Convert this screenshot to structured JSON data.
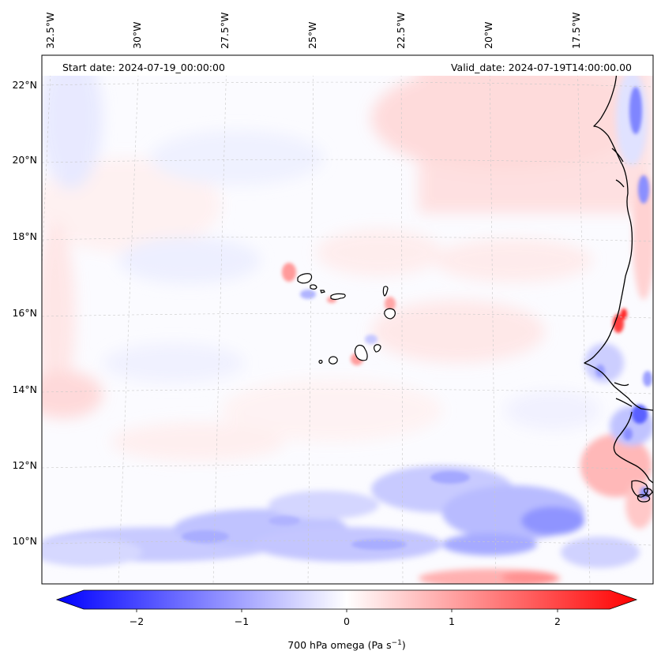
{
  "header": {
    "start_date": "Start date: 2024-07-19_00:00:00",
    "valid_date": "Valid_date: 2024-07-19T14:00:00.00"
  },
  "axes": {
    "lon_ticks": [
      "32.5°W",
      "30°W",
      "27.5°W",
      "25°W",
      "22.5°W",
      "20°W",
      "17.5°W"
    ],
    "lat_ticks": [
      "22°N",
      "20°N",
      "18°N",
      "16°N",
      "14°N",
      "12°N",
      "10°N"
    ]
  },
  "colorbar": {
    "ticks": [
      "−2",
      "−1",
      "0",
      "1",
      "2"
    ],
    "label_main": "700 hPa omega (Pa s",
    "label_sup": "−1",
    "label_end": ")",
    "colormap": "bwr",
    "range": [
      -2.75,
      2.75
    ],
    "extend": "both"
  },
  "colors": {
    "negative": "#0000ff",
    "neutral": "#ffffff",
    "positive": "#ff0000",
    "coastline": "#000000",
    "gridline": "#c8c8c8"
  }
}
